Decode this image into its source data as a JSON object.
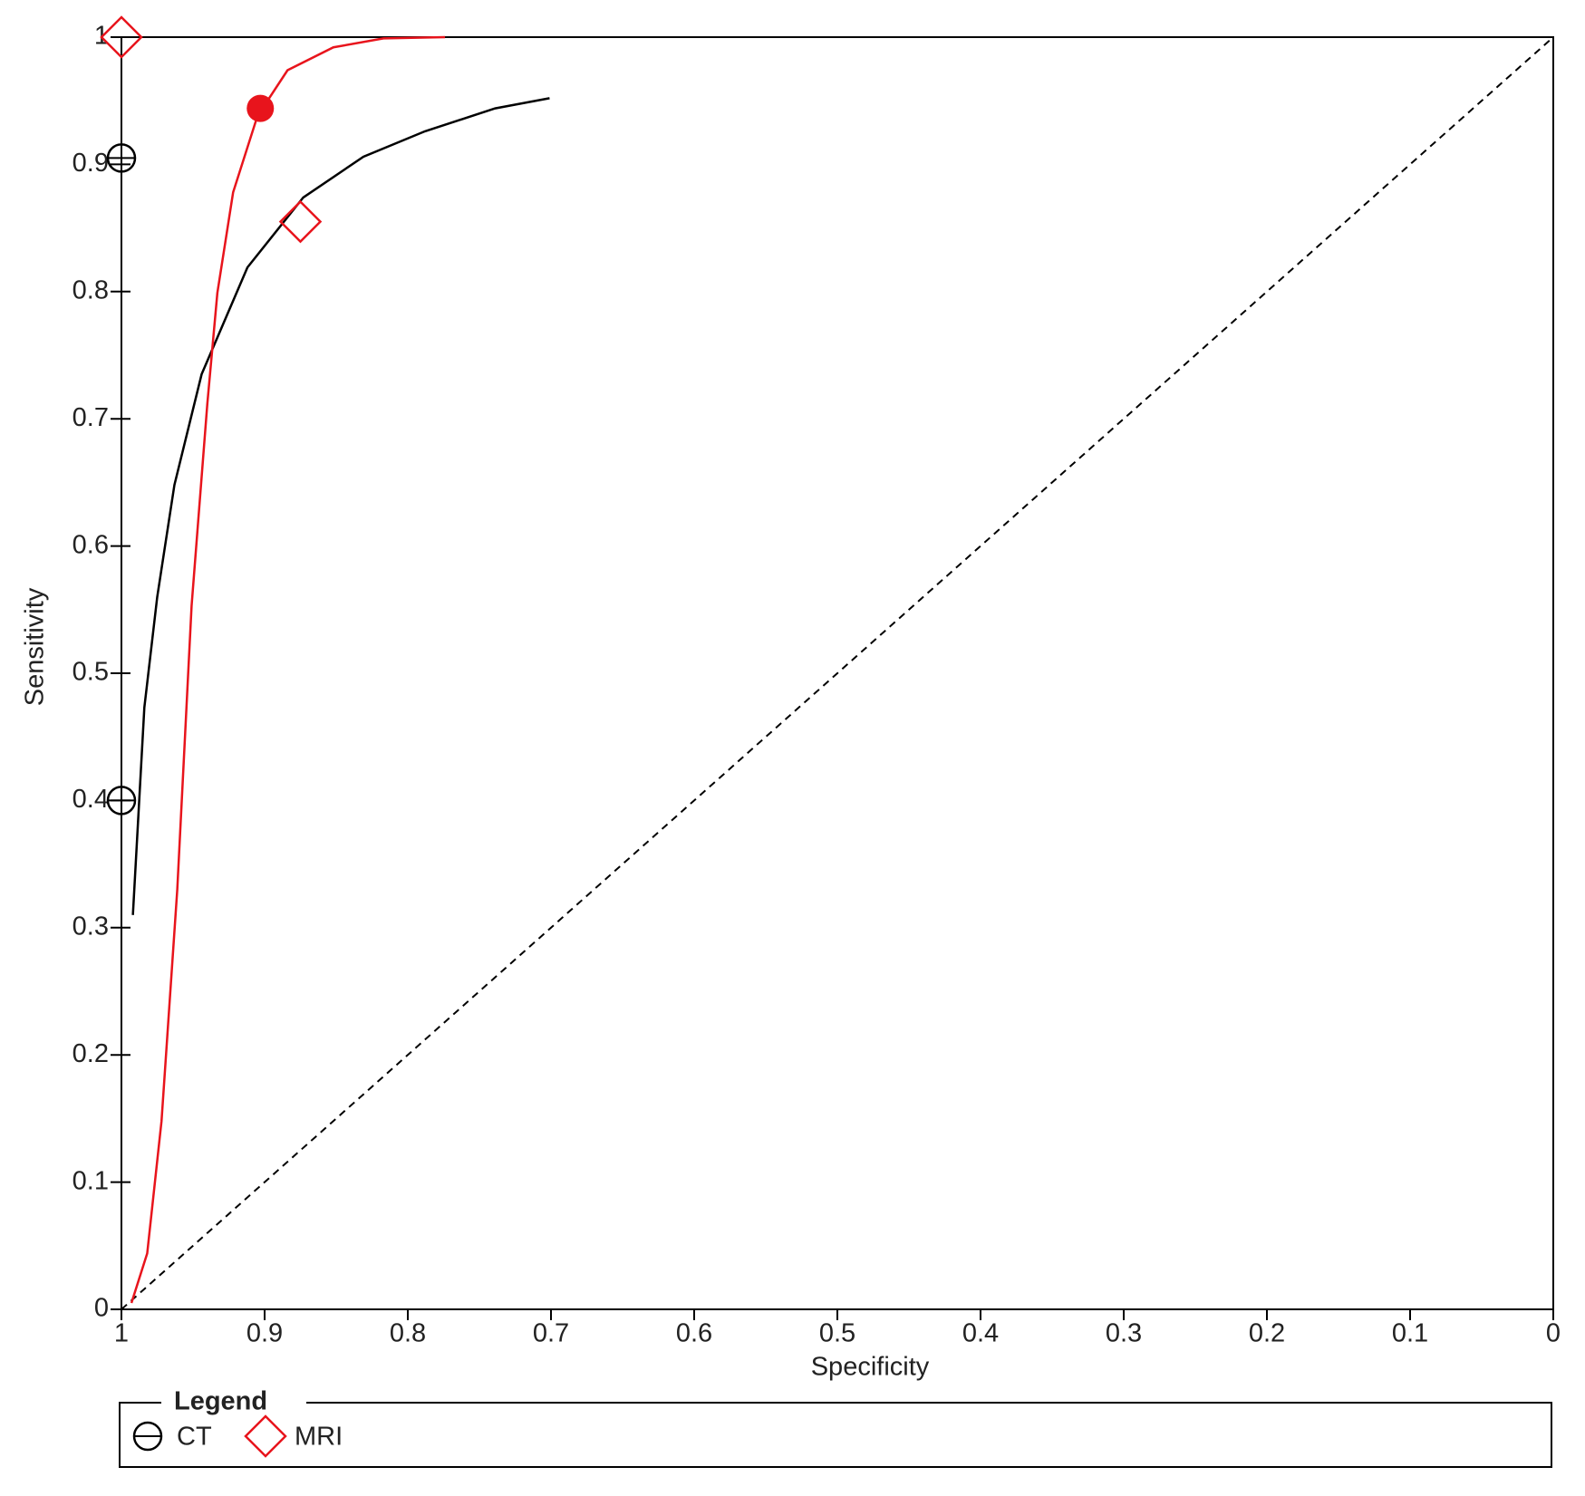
{
  "chart_data": {
    "type": "sroc",
    "x_label": "Specificity",
    "y_label": "Sensitivity",
    "xlim": [
      1,
      0
    ],
    "xticks": [
      1,
      0.9,
      0.8,
      0.7,
      0.6,
      0.5,
      0.4,
      0.3,
      0.2,
      0.1,
      0
    ],
    "ylim": [
      0,
      1
    ],
    "yticks": [
      0,
      0.1,
      0.2,
      0.3,
      0.4,
      0.5,
      0.6,
      0.7,
      0.8,
      0.9,
      1
    ],
    "legend_title": "Legend",
    "series": [
      {
        "name": "CT",
        "color": "#000000",
        "marker": "circle",
        "x": [
          1,
          1
        ],
        "values": [
          0.905,
          0.4
        ],
        "curve": {
          "x": [
            0.992,
            0.984,
            0.975,
            0.963,
            0.944,
            0.912,
            0.873,
            0.831,
            0.788,
            0.739,
            0.701
          ],
          "values": [
            0.31,
            0.473,
            0.56,
            0.648,
            0.735,
            0.819,
            0.874,
            0.906,
            0.926,
            0.944,
            0.952
          ]
        }
      },
      {
        "name": "MRI",
        "color": "#e8141c",
        "marker": "diamond",
        "x": [
          1,
          0.875
        ],
        "values": [
          1,
          0.855
        ],
        "summary": {
          "x": 0.903,
          "value": 0.944
        },
        "curve": {
          "x": [
            0.993,
            0.982,
            0.972,
            0.961,
            0.951,
            0.94,
            0.933,
            0.922,
            0.905,
            0.884,
            0.852,
            0.817,
            0.774
          ],
          "values": [
            0.005,
            0.044,
            0.148,
            0.33,
            0.553,
            0.712,
            0.799,
            0.878,
            0.938,
            0.974,
            0.992,
            0.999,
            1.0
          ]
        }
      }
    ]
  }
}
